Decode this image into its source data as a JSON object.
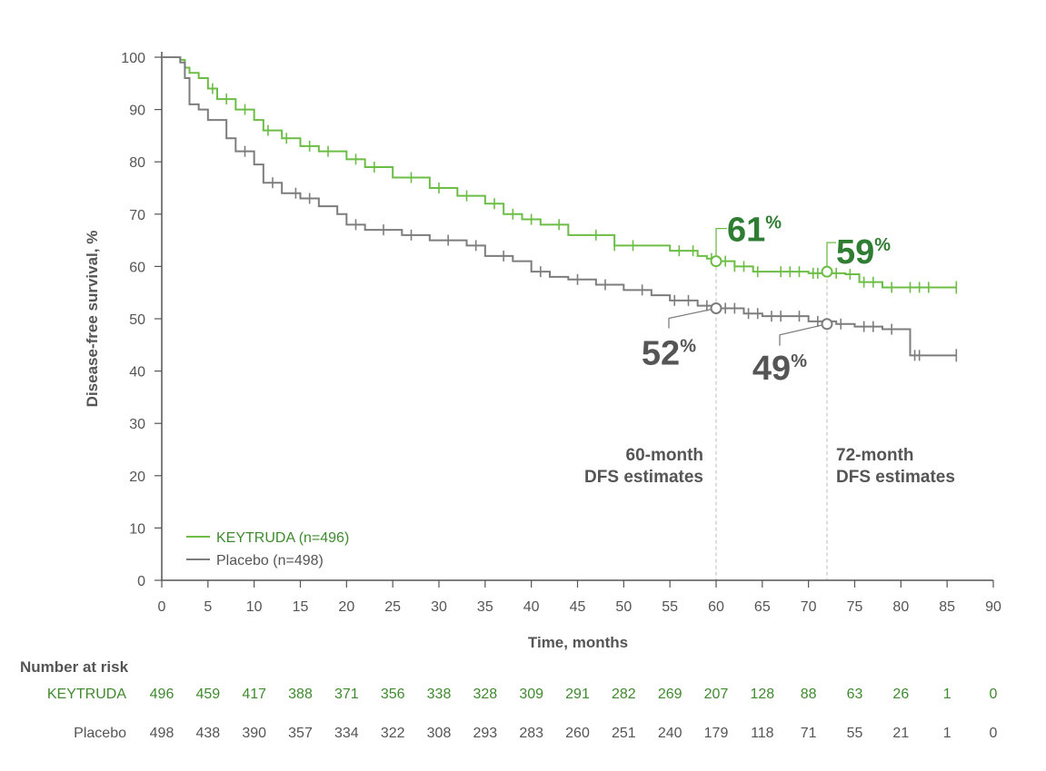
{
  "chart_data": {
    "type": "line",
    "ylabel": "Disease-free survival, %",
    "xlabel": "Time, months",
    "xlim": [
      0,
      90
    ],
    "ylim": [
      0,
      100
    ],
    "x_ticks": [
      0,
      5,
      10,
      15,
      20,
      25,
      30,
      35,
      40,
      45,
      50,
      55,
      60,
      65,
      70,
      75,
      80,
      85,
      90
    ],
    "y_ticks": [
      0,
      10,
      20,
      30,
      40,
      50,
      60,
      70,
      80,
      90,
      100
    ],
    "grid": false,
    "legend_position": "bottom-left",
    "series": [
      {
        "name": "KEYTRUDA (n=496)",
        "color": "#6cbd45",
        "x": [
          0,
          2,
          2.5,
          3,
          4,
          5,
          6,
          8,
          10,
          11,
          13,
          15,
          17,
          20,
          22,
          25,
          29,
          32,
          35,
          37,
          39,
          41,
          44,
          49,
          55,
          58,
          59,
          60,
          62,
          64,
          66,
          70,
          74,
          75.5,
          78,
          80,
          86
        ],
        "y": [
          100,
          99.5,
          98,
          97,
          96,
          94,
          92,
          90,
          88,
          86,
          84.5,
          83,
          82,
          80.5,
          79,
          77,
          75,
          73.5,
          72,
          70,
          69,
          68,
          66,
          64,
          63,
          62,
          61.5,
          61,
          60,
          59,
          59,
          58.7,
          58.5,
          57,
          56,
          56,
          56
        ],
        "censor_x": [
          5.5,
          7,
          9,
          11.5,
          13.5,
          16,
          18,
          21,
          23,
          27,
          30,
          33,
          36,
          38,
          40,
          43,
          47,
          49,
          51,
          56,
          57.5,
          59.5,
          61,
          62,
          63,
          64.5,
          67,
          68,
          69,
          70.5,
          71,
          73,
          74.5,
          76,
          77,
          79,
          81,
          82,
          83
        ]
      },
      {
        "name": "Placebo (n=498)",
        "color": "#7d7d7d",
        "x": [
          0,
          2,
          2.5,
          3,
          4,
          5,
          7,
          8,
          10,
          11,
          13,
          15,
          17,
          19,
          20,
          22,
          26,
          29,
          33,
          35,
          38,
          40,
          42,
          44,
          47,
          50,
          53,
          55,
          58,
          60,
          63,
          65,
          70,
          73,
          75,
          78,
          80.5,
          81,
          86
        ],
        "y": [
          100,
          99,
          96,
          91,
          90,
          88,
          84.5,
          82,
          79.5,
          76,
          74,
          73,
          71.5,
          70,
          68,
          67,
          66,
          65,
          64,
          62,
          61,
          59,
          58,
          57.5,
          56.5,
          55.5,
          54.5,
          53.5,
          52.5,
          52,
          51,
          50.5,
          49.5,
          49,
          48.5,
          48,
          48,
          43,
          43
        ],
        "censor_x": [
          9,
          12,
          14.5,
          16,
          21,
          24,
          27,
          31,
          34,
          37,
          41,
          45,
          48,
          52,
          55.5,
          57,
          59,
          61,
          62,
          63.5,
          64.5,
          66,
          67,
          69,
          71,
          73.5,
          76,
          77,
          79,
          81.5,
          82
        ]
      }
    ],
    "annotations": [
      {
        "label": "61",
        "unit": "%",
        "series": 0,
        "x": 60,
        "y": 61
      },
      {
        "label": "59",
        "unit": "%",
        "series": 0,
        "x": 72,
        "y": 59
      },
      {
        "label": "52",
        "unit": "%",
        "series": 1,
        "x": 60,
        "y": 52
      },
      {
        "label": "49",
        "unit": "%",
        "series": 1,
        "x": 72,
        "y": 49
      }
    ],
    "reference_lines": [
      {
        "x": 60,
        "label_line1": "60-month",
        "label_line2": "DFS estimates"
      },
      {
        "x": 72,
        "label_line1": "72-month",
        "label_line2": "DFS estimates"
      }
    ],
    "risk_table": {
      "title": "Number at risk",
      "times": [
        0,
        5,
        10,
        15,
        20,
        25,
        30,
        35,
        40,
        45,
        50,
        55,
        60,
        65,
        70,
        75,
        80,
        85,
        90
      ],
      "rows": [
        {
          "label": "KEYTRUDA",
          "color": "#3f8a2e",
          "values": [
            "496",
            "459",
            "417",
            "388",
            "371",
            "356",
            "338",
            "328",
            "309",
            "291",
            "282",
            "269",
            "207",
            "128",
            "88",
            "63",
            "26",
            "1",
            "0"
          ]
        },
        {
          "label": "Placebo",
          "color": "#555555",
          "values": [
            "498",
            "438",
            "390",
            "357",
            "334",
            "322",
            "308",
            "293",
            "283",
            "260",
            "251",
            "240",
            "179",
            "118",
            "71",
            "55",
            "21",
            "1",
            "0"
          ]
        }
      ]
    }
  },
  "colors": {
    "big_green": "#2e7d32",
    "big_gray": "#555555",
    "axis": "#555555",
    "ref_line": "#bbbbbb"
  }
}
